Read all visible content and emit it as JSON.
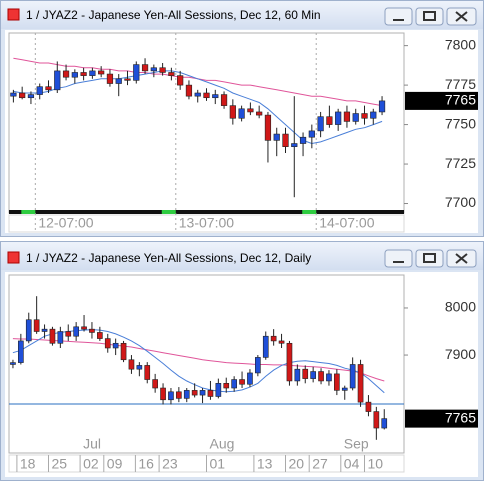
{
  "chart_data": [
    {
      "type": "candlestick",
      "title": "1 / JYAZ2 - Japanese Yen-All Sessions, Dec 12, 60 Min",
      "categories": [
        null,
        null,
        null,
        "12-07:00",
        null,
        null,
        null,
        null,
        null,
        null,
        null,
        null,
        null,
        null,
        null,
        null,
        null,
        null,
        null,
        "13-07:00",
        null,
        null,
        null,
        null,
        null,
        null,
        null,
        null,
        null,
        null,
        null,
        null,
        null,
        null,
        null,
        "14-07:00",
        null,
        null,
        null,
        null,
        null,
        null,
        null
      ],
      "open": [
        7768,
        7770,
        7767,
        7769,
        7774,
        7772,
        7784,
        7780,
        7783,
        7781,
        7784,
        7782,
        7776,
        7779,
        7778,
        7788,
        7784,
        7786,
        7783,
        7781,
        7775,
        7768,
        7770,
        7767,
        7769,
        7762,
        7754,
        7760,
        7758,
        7756,
        7740,
        7744,
        7736,
        7738,
        7742,
        7746,
        7755,
        7750,
        7758,
        7752,
        7757,
        7754,
        7758
      ],
      "high": [
        7772,
        7774,
        7771,
        7776,
        7778,
        7790,
        7788,
        7785,
        7786,
        7786,
        7787,
        7785,
        7782,
        7784,
        7790,
        7792,
        7788,
        7789,
        7786,
        7784,
        7778,
        7772,
        7773,
        7772,
        7771,
        7766,
        7762,
        7764,
        7762,
        7758,
        7748,
        7748,
        7768,
        7745,
        7750,
        7758,
        7762,
        7760,
        7762,
        7760,
        7762,
        7760,
        7768
      ],
      "low": [
        7764,
        7766,
        7763,
        7766,
        7770,
        7770,
        7778,
        7776,
        7778,
        7779,
        7780,
        7774,
        7768,
        7775,
        7776,
        7782,
        7780,
        7781,
        7778,
        7772,
        7766,
        7764,
        7765,
        7763,
        7760,
        7750,
        7752,
        7756,
        7754,
        7726,
        7730,
        7732,
        7704,
        7730,
        7735,
        7742,
        7748,
        7746,
        7748,
        7750,
        7750,
        7750,
        7756
      ],
      "close": [
        7770,
        7767,
        7769,
        7774,
        7772,
        7784,
        7780,
        7783,
        7781,
        7784,
        7782,
        7776,
        7779,
        7778,
        7788,
        7784,
        7786,
        7783,
        7781,
        7775,
        7768,
        7770,
        7767,
        7769,
        7762,
        7754,
        7760,
        7758,
        7756,
        7740,
        7744,
        7736,
        7738,
        7742,
        7746,
        7755,
        7750,
        7758,
        7752,
        7757,
        7754,
        7758,
        7765
      ],
      "up_color": "#1f4fd8",
      "down_color": "#d01818",
      "lines": [
        {
          "color": "#e0559a",
          "values": [
            7792,
            7791,
            7790,
            7789,
            7789,
            7788,
            7787,
            7787,
            7786,
            7786,
            7785,
            7785,
            7784,
            7784,
            7783,
            7783,
            7782,
            7782,
            7781,
            7780,
            7780,
            7779,
            7778,
            7778,
            7777,
            7776,
            7775,
            7775,
            7774,
            7773,
            7772,
            7771,
            7770,
            7769,
            7768,
            7768,
            7767,
            7766,
            7765,
            7765,
            7764,
            7763,
            7762
          ]
        },
        {
          "color": "#4a7fd8",
          "values": [
            7771,
            7770,
            7770,
            7770,
            7771,
            7773,
            7774,
            7776,
            7777,
            7778,
            7779,
            7779,
            7779,
            7780,
            7781,
            7782,
            7783,
            7784,
            7784,
            7783,
            7781,
            7779,
            7777,
            7775,
            7773,
            7770,
            7768,
            7766,
            7764,
            7760,
            7755,
            7750,
            7745,
            7740,
            7738,
            7739,
            7741,
            7743,
            7745,
            7747,
            7748,
            7750,
            7752
          ]
        }
      ],
      "last_value": 7765,
      "ylim": [
        7694,
        7808
      ],
      "yticks": [
        7700,
        7725,
        7750,
        7775,
        7800
      ]
    },
    {
      "type": "candlestick",
      "title": "1 / JYAZ2 - Japanese Yen-All Sessions, Dec 12, Daily",
      "categories": [
        null,
        "18",
        null,
        null,
        null,
        "25",
        null,
        null,
        null,
        "02",
        null,
        null,
        "09",
        null,
        null,
        null,
        "16",
        null,
        null,
        "23",
        null,
        null,
        null,
        null,
        null,
        "01",
        null,
        null,
        null,
        null,
        null,
        "13",
        null,
        null,
        null,
        "20",
        null,
        null,
        "27",
        null,
        null,
        null,
        "04",
        null,
        null,
        "10",
        null,
        null
      ],
      "month_categories": [
        null,
        null,
        null,
        null,
        null,
        null,
        null,
        null,
        null,
        "Jul",
        null,
        null,
        null,
        null,
        null,
        null,
        null,
        null,
        null,
        null,
        null,
        null,
        null,
        null,
        null,
        "Aug",
        null,
        null,
        null,
        null,
        null,
        null,
        null,
        null,
        null,
        null,
        null,
        null,
        null,
        null,
        null,
        null,
        "Sep",
        null,
        null,
        null,
        null,
        null
      ],
      "open": [
        7880,
        7884,
        7930,
        7975,
        7950,
        7955,
        7925,
        7950,
        7940,
        7960,
        7955,
        7948,
        7935,
        7915,
        7925,
        7890,
        7870,
        7878,
        7848,
        7830,
        7805,
        7822,
        7808,
        7825,
        7815,
        7825,
        7812,
        7840,
        7830,
        7848,
        7838,
        7862,
        7895,
        7940,
        7930,
        7925,
        7845,
        7870,
        7850,
        7865,
        7845,
        7860,
        7825,
        7830,
        7880,
        7800,
        7780,
        7745
      ],
      "high": [
        7890,
        7945,
        7990,
        8025,
        7965,
        7960,
        7960,
        7965,
        7970,
        7985,
        7970,
        7960,
        7945,
        7935,
        7930,
        7900,
        7885,
        7885,
        7860,
        7840,
        7830,
        7832,
        7830,
        7840,
        7830,
        7845,
        7850,
        7852,
        7855,
        7865,
        7870,
        7900,
        7950,
        7955,
        7945,
        7930,
        7880,
        7878,
        7875,
        7872,
        7868,
        7870,
        7835,
        7895,
        7890,
        7815,
        7790,
        7785
      ],
      "low": [
        7872,
        7880,
        7925,
        7945,
        7935,
        7920,
        7915,
        7930,
        7930,
        7950,
        7935,
        7930,
        7905,
        7900,
        7885,
        7860,
        7855,
        7840,
        7820,
        7795,
        7795,
        7800,
        7800,
        7810,
        7798,
        7805,
        7808,
        7820,
        7822,
        7830,
        7832,
        7855,
        7890,
        7920,
        7915,
        7835,
        7835,
        7840,
        7842,
        7838,
        7835,
        7815,
        7805,
        7825,
        7790,
        7770,
        7720,
        7742
      ],
      "close": [
        7884,
        7930,
        7975,
        7950,
        7955,
        7925,
        7950,
        7940,
        7960,
        7955,
        7948,
        7935,
        7915,
        7925,
        7890,
        7870,
        7878,
        7848,
        7830,
        7805,
        7822,
        7808,
        7825,
        7815,
        7825,
        7812,
        7840,
        7830,
        7848,
        7838,
        7862,
        7895,
        7940,
        7930,
        7925,
        7845,
        7870,
        7850,
        7865,
        7845,
        7860,
        7825,
        7830,
        7880,
        7800,
        7780,
        7745,
        7765
      ],
      "up_color": "#1f4fd8",
      "down_color": "#d01818",
      "lines": [
        {
          "color": "#e0559a",
          "values": [
            7935,
            7934,
            7934,
            7933,
            7932,
            7931,
            7930,
            7929,
            7928,
            7927,
            7926,
            7925,
            7923,
            7921,
            7919,
            7917,
            7914,
            7911,
            7908,
            7905,
            7902,
            7899,
            7896,
            7893,
            7890,
            7888,
            7886,
            7884,
            7883,
            7882,
            7881,
            7880,
            7880,
            7879,
            7879,
            7878,
            7877,
            7876,
            7875,
            7874,
            7872,
            7870,
            7868,
            7866,
            7862,
            7856,
            7850,
            7845
          ]
        },
        {
          "color": "#4a7fd8",
          "values": [
            7905,
            7910,
            7920,
            7930,
            7940,
            7945,
            7948,
            7950,
            7952,
            7953,
            7954,
            7953,
            7950,
            7945,
            7938,
            7930,
            7920,
            7908,
            7895,
            7882,
            7868,
            7855,
            7845,
            7837,
            7830,
            7826,
            7823,
            7822,
            7823,
            7826,
            7832,
            7840,
            7855,
            7868,
            7878,
            7884,
            7887,
            7888,
            7886,
            7884,
            7882,
            7878,
            7872,
            7868,
            7862,
            7850,
            7835,
            7820
          ]
        }
      ],
      "hline": 7796,
      "hline_color": "#2a6fc0",
      "last_value": 7765,
      "ylim": [
        7692,
        8070
      ],
      "yticks": [
        7900,
        8000
      ]
    }
  ]
}
